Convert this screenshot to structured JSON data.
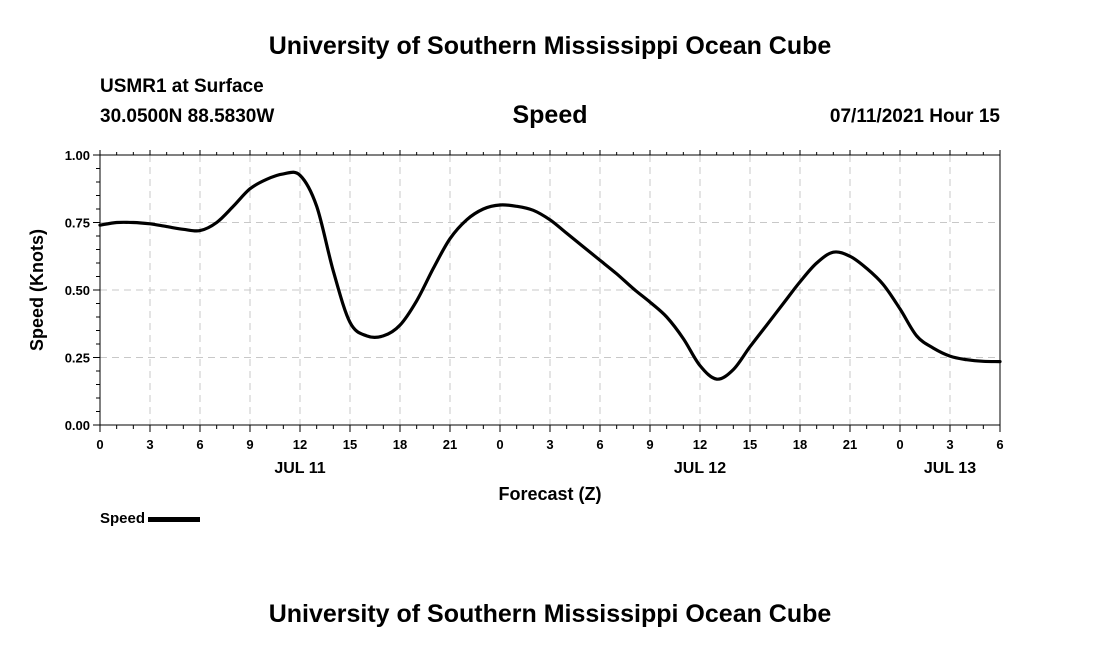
{
  "header": {
    "title": "University of Southern Mississippi Ocean Cube",
    "station": "USMR1 at Surface",
    "location": "30.0500N  88.5830W",
    "variable": "Speed",
    "datetime": "07/11/2021 Hour 15"
  },
  "footer": {
    "title": "University of Southern Mississippi Ocean Cube"
  },
  "legend": {
    "label": "Speed"
  },
  "chart_data": {
    "type": "line",
    "title": "Speed",
    "xlabel": "Forecast (Z)",
    "ylabel": "Speed (Knots)",
    "xlim": [
      0,
      54
    ],
    "ylim": [
      0,
      1
    ],
    "grid": true,
    "legend_position": "bottom-left",
    "colors": {
      "line": "#000000",
      "grid": "#c8c8c8"
    },
    "x_tick_labels": [
      "0",
      "3",
      "6",
      "9",
      "12",
      "15",
      "18",
      "21",
      "0",
      "3",
      "6",
      "9",
      "12",
      "15",
      "18",
      "21",
      "0",
      "3",
      "6"
    ],
    "y_tick_labels": [
      "0.00",
      "0.25",
      "0.50",
      "0.75",
      "1.00"
    ],
    "y_tick_values": [
      0,
      0.25,
      0.5,
      0.75,
      1.0
    ],
    "date_labels": [
      {
        "label": "JUL 11",
        "x": 12
      },
      {
        "label": "JUL 12",
        "x": 36
      },
      {
        "label": "JUL 13",
        "x": 51
      }
    ],
    "series": [
      {
        "name": "Speed",
        "x": [
          0,
          1,
          2,
          3,
          4,
          5,
          6,
          7,
          8,
          9,
          10,
          11,
          12,
          13,
          14,
          15,
          16,
          17,
          18,
          19,
          20,
          21,
          22,
          23,
          24,
          25,
          26,
          27,
          28,
          29,
          30,
          31,
          32,
          33,
          34,
          35,
          36,
          37,
          38,
          39,
          40,
          41,
          42,
          43,
          44,
          45,
          46,
          47,
          48,
          49,
          50,
          51,
          52,
          53,
          54
        ],
        "values": [
          0.74,
          0.75,
          0.75,
          0.745,
          0.735,
          0.725,
          0.72,
          0.75,
          0.81,
          0.875,
          0.91,
          0.93,
          0.925,
          0.81,
          0.57,
          0.38,
          0.33,
          0.33,
          0.37,
          0.46,
          0.58,
          0.69,
          0.76,
          0.8,
          0.815,
          0.81,
          0.795,
          0.76,
          0.71,
          0.66,
          0.61,
          0.56,
          0.505,
          0.455,
          0.4,
          0.32,
          0.22,
          0.17,
          0.205,
          0.29,
          0.37,
          0.45,
          0.53,
          0.6,
          0.64,
          0.625,
          0.58,
          0.52,
          0.43,
          0.33,
          0.285,
          0.255,
          0.242,
          0.236,
          0.235
        ]
      }
    ]
  }
}
